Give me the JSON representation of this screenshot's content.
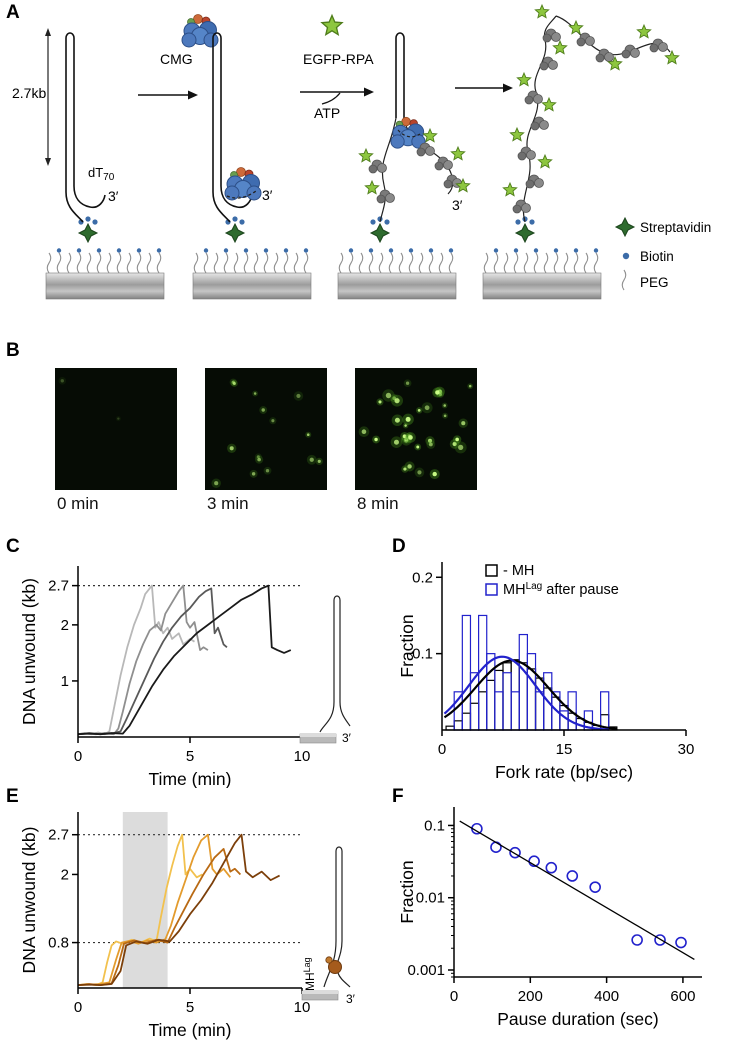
{
  "panel_labels": {
    "a": "A",
    "b": "B",
    "c": "C",
    "d": "D",
    "e": "E",
    "f": "F"
  },
  "schematic": {
    "length_label": "2.7kb",
    "dt_label": "dT",
    "dt_sub": "70",
    "three_prime": "3′",
    "cmg_label": "CMG",
    "egfp_rpa_label": "EGFP-RPA",
    "atp_label": "ATP",
    "legend": {
      "streptavidin": "Streptavidin",
      "biotin": "Biotin",
      "peg": "PEG"
    }
  },
  "microscopy": {
    "frames": [
      {
        "time": "0 min",
        "spots": 2,
        "brightness": 0.3,
        "size": 1.2
      },
      {
        "time": "3 min",
        "spots": 15,
        "brightness": 0.75,
        "size": 1.6
      },
      {
        "time": "8 min",
        "spots": 35,
        "brightness": 1.0,
        "size": 2.0
      }
    ]
  },
  "insets": {
    "mh_label": "MH",
    "mh_sup": "Lag"
  },
  "chart_data": [
    {
      "id": "chartC",
      "type": "line",
      "title": "",
      "xlabel": "Time (min)",
      "ylabel": "DNA unwound (kb)",
      "xlim": [
        0,
        10
      ],
      "ylim": [
        0,
        3.05
      ],
      "xticks": [
        0,
        5,
        10
      ],
      "yticks": [
        {
          "v": 1,
          "label": "1"
        },
        {
          "v": 2,
          "label": "2"
        },
        {
          "v": 2.7,
          "label": "2.7"
        }
      ],
      "hlines": [
        2.7
      ],
      "m": {
        "l": 58,
        "r": 10,
        "t": 18,
        "b": 51
      },
      "series": [
        {
          "name": "trace-1",
          "color": "#b8b8b8",
          "x": [
            0,
            0.3,
            0.6,
            0.9,
            1.2,
            1.4,
            1.6,
            1.9,
            2.2,
            2.5,
            2.8,
            3.0,
            3.2,
            3.3,
            3.45,
            3.6,
            3.8,
            4.0,
            4.2,
            4.5,
            4.7,
            5.0,
            5.2
          ],
          "y": [
            0.05,
            0.07,
            0.05,
            0.08,
            0.05,
            0.1,
            0.5,
            1.1,
            1.6,
            2.0,
            2.3,
            2.55,
            2.65,
            2.7,
            1.95,
            2.05,
            1.85,
            1.95,
            1.75,
            1.85,
            1.65,
            1.75,
            1.7
          ]
        },
        {
          "name": "trace-2",
          "color": "#8f8f8f",
          "x": [
            0,
            0.4,
            0.8,
            1.2,
            1.6,
            1.8,
            2.0,
            2.3,
            2.6,
            2.9,
            3.2,
            3.5,
            3.7,
            3.9,
            4.2,
            4.5,
            4.7,
            4.85,
            5.0,
            5.2,
            5.45,
            5.6,
            5.8
          ],
          "y": [
            0.05,
            0.06,
            0.05,
            0.07,
            0.05,
            0.15,
            0.45,
            0.95,
            1.35,
            1.65,
            1.9,
            2.0,
            1.9,
            2.2,
            2.4,
            2.6,
            2.7,
            2.05,
            1.95,
            2.05,
            1.55,
            1.6,
            1.55
          ]
        },
        {
          "name": "trace-3",
          "color": "#595959",
          "x": [
            0,
            0.5,
            1.0,
            1.5,
            1.9,
            2.2,
            2.6,
            3.0,
            3.4,
            3.8,
            4.2,
            4.6,
            5.0,
            5.4,
            5.7,
            5.95,
            6.1,
            6.25,
            6.5,
            6.65
          ],
          "y": [
            0.05,
            0.07,
            0.05,
            0.06,
            0.1,
            0.35,
            0.7,
            1.05,
            1.4,
            1.7,
            1.95,
            2.15,
            2.3,
            2.5,
            2.6,
            2.65,
            1.85,
            1.95,
            1.65,
            1.6
          ]
        },
        {
          "name": "trace-4",
          "color": "#1a1a1a",
          "x": [
            0,
            0.5,
            1.0,
            1.5,
            2.0,
            2.3,
            2.8,
            3.3,
            3.8,
            4.3,
            4.8,
            5.3,
            5.8,
            6.3,
            6.8,
            7.3,
            7.8,
            8.2,
            8.5,
            8.65,
            8.9,
            9.2,
            9.5
          ],
          "y": [
            0.05,
            0.06,
            0.05,
            0.07,
            0.06,
            0.2,
            0.55,
            0.9,
            1.2,
            1.45,
            1.65,
            1.85,
            2.0,
            2.15,
            2.3,
            2.45,
            2.55,
            2.65,
            2.7,
            1.6,
            1.55,
            1.5,
            1.55
          ]
        }
      ]
    },
    {
      "id": "chartD",
      "type": "bar",
      "title": "",
      "xlabel": "Fork rate (bp/sec)",
      "ylabel": "Fraction",
      "xlim": [
        0,
        30
      ],
      "ylim": [
        0,
        0.22
      ],
      "xticks": [
        0,
        15,
        30
      ],
      "yticks": [
        {
          "v": 0.1,
          "label": "0.1"
        },
        {
          "v": 0.2,
          "label": "0.2"
        }
      ],
      "bin_width": 1,
      "m": {
        "l": 44,
        "r": 12,
        "t": 14,
        "b": 58
      },
      "hists": [
        {
          "name": "- MH",
          "color": "#000000",
          "centers": [
            1,
            2,
            3,
            4,
            5,
            6,
            7,
            8,
            9,
            10,
            11,
            12,
            13,
            14,
            15,
            16,
            17,
            18,
            19,
            20,
            21
          ],
          "values": [
            0.005,
            0.012,
            0.022,
            0.035,
            0.05,
            0.065,
            0.078,
            0.088,
            0.092,
            0.088,
            0.08,
            0.068,
            0.055,
            0.043,
            0.032,
            0.022,
            0.015,
            0.01,
            0.006,
            0.02,
            0.004
          ]
        },
        {
          "name": "MH-Lag after pause",
          "color": "#2222cc",
          "centers": [
            1,
            2,
            3,
            4,
            5,
            6,
            7,
            8,
            9,
            10,
            11,
            12,
            13,
            14,
            15,
            16,
            17,
            18,
            19,
            20,
            21
          ],
          "values": [
            0,
            0.05,
            0.15,
            0.075,
            0.15,
            0.1,
            0.05,
            0.075,
            0.05,
            0.125,
            0.1,
            0.05,
            0.075,
            0.05,
            0.025,
            0.05,
            0,
            0.025,
            0,
            0.05,
            0
          ]
        }
      ],
      "curves": [
        {
          "color": "#000000",
          "amp": 0.091,
          "mean": 8.6,
          "sigma": 4.5,
          "range": [
            0.3,
            21.5
          ]
        },
        {
          "color": "#2222cc",
          "amp": 0.096,
          "mean": 7.4,
          "sigma": 4.1,
          "range": [
            0.3,
            20.5
          ]
        }
      ],
      "legend": [
        {
          "pre": "- MH",
          "sup": "",
          "post": "",
          "color": "#000000"
        },
        {
          "pre": "MH",
          "sup": "Lag",
          "post": " after pause",
          "color": "#2222cc"
        }
      ]
    },
    {
      "id": "chartE",
      "type": "line",
      "title": "",
      "xlabel": "Time (min)",
      "ylabel": "DNA unwound (kb)",
      "xlim": [
        0,
        10
      ],
      "ylim": [
        0,
        3.1
      ],
      "xticks": [
        0,
        5,
        10
      ],
      "yticks": [
        {
          "v": 0.8,
          "label": "0.8"
        },
        {
          "v": 2,
          "label": "2"
        },
        {
          "v": 2.7,
          "label": "2.7"
        }
      ],
      "hlines": [
        0.8,
        2.7
      ],
      "band": [
        2,
        4
      ],
      "band_color": "#dcdcdc",
      "m": {
        "l": 58,
        "r": 10,
        "t": 14,
        "b": 60
      },
      "series": [
        {
          "name": "trace-1",
          "color": "#f2c14e",
          "x": [
            0,
            0.4,
            0.8,
            1.1,
            1.3,
            1.5,
            1.7,
            2.0,
            2.4,
            2.8,
            3.2,
            3.5,
            3.7,
            3.95,
            4.2,
            4.45,
            4.65,
            4.8,
            5.0,
            5.3,
            5.55
          ],
          "y": [
            0.05,
            0.07,
            0.05,
            0.1,
            0.45,
            0.75,
            0.82,
            0.78,
            0.85,
            0.8,
            0.87,
            0.82,
            1.25,
            1.75,
            2.15,
            2.5,
            2.7,
            2.0,
            2.1,
            1.95,
            2.0
          ]
        },
        {
          "name": "trace-2",
          "color": "#e39b2d",
          "x": [
            0,
            0.5,
            1.0,
            1.4,
            1.7,
            1.95,
            2.3,
            2.7,
            3.1,
            3.5,
            3.9,
            4.15,
            4.45,
            4.8,
            5.15,
            5.5,
            5.8,
            6.0,
            6.2,
            6.5,
            6.8
          ],
          "y": [
            0.05,
            0.06,
            0.07,
            0.1,
            0.5,
            0.8,
            0.83,
            0.78,
            0.84,
            0.8,
            0.86,
            1.1,
            1.5,
            1.9,
            2.3,
            2.6,
            2.7,
            2.1,
            2.0,
            2.1,
            1.95
          ]
        },
        {
          "name": "trace-3",
          "color": "#b96a14",
          "x": [
            0,
            0.5,
            1.0,
            1.5,
            1.8,
            2.05,
            2.5,
            3.0,
            3.5,
            4.0,
            4.3,
            4.7,
            5.1,
            5.6,
            6.1,
            6.5,
            6.8,
            7.0,
            7.25
          ],
          "y": [
            0.05,
            0.07,
            0.05,
            0.08,
            0.4,
            0.78,
            0.84,
            0.79,
            0.85,
            0.8,
            1.05,
            1.35,
            1.65,
            2.0,
            2.3,
            2.45,
            2.05,
            2.1,
            2.0
          ]
        },
        {
          "name": "trace-4",
          "color": "#7c3f0a",
          "x": [
            0,
            0.5,
            1.0,
            1.5,
            1.9,
            2.15,
            2.6,
            3.1,
            3.6,
            4.1,
            4.5,
            5.0,
            5.5,
            6.0,
            6.5,
            7.0,
            7.3,
            7.5,
            7.8,
            8.2,
            8.6,
            9.0
          ],
          "y": [
            0.05,
            0.06,
            0.05,
            0.07,
            0.3,
            0.75,
            0.82,
            0.78,
            0.85,
            0.82,
            1.0,
            1.3,
            1.55,
            1.85,
            2.2,
            2.55,
            2.7,
            2.05,
            1.95,
            2.05,
            1.9,
            1.98
          ]
        }
      ]
    },
    {
      "id": "chartF",
      "type": "scatter",
      "title": "",
      "xlabel": "Pause duration (sec)",
      "ylabel": "Fraction",
      "xlim": [
        0,
        650
      ],
      "ylog": true,
      "ylim": [
        0.0008,
        0.18
      ],
      "xticks": [
        0,
        200,
        400,
        600
      ],
      "yticks": [
        {
          "v": 0.1,
          "label": "0.1"
        },
        {
          "v": 0.01,
          "label": "0.01"
        },
        {
          "v": 0.001,
          "label": "0.001"
        }
      ],
      "minor_ticks": true,
      "m": {
        "l": 56,
        "r": 16,
        "t": 12,
        "b": 73
      },
      "points": {
        "color": "#2222cc",
        "x": [
          60,
          110,
          160,
          210,
          255,
          310,
          370,
          480,
          540,
          595
        ],
        "y": [
          0.09,
          0.05,
          0.042,
          0.032,
          0.026,
          0.02,
          0.014,
          0.0026,
          0.0026,
          0.0024
        ]
      },
      "fit_line": {
        "color": "#000000",
        "x": [
          15,
          630
        ],
        "y": [
          0.115,
          0.0014
        ]
      }
    }
  ]
}
